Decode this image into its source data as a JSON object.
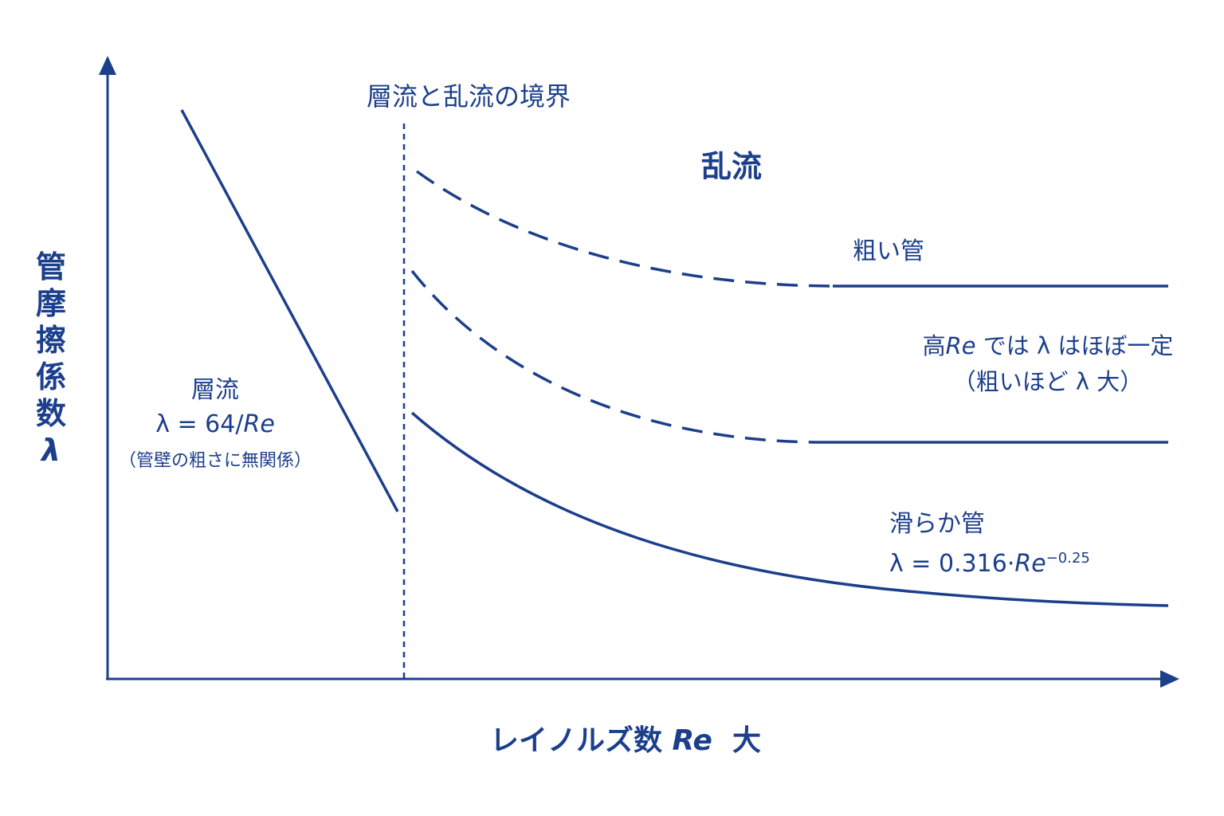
{
  "colors": {
    "ink": "#1c3f8c"
  },
  "y_axis_label_chars": [
    "管",
    "摩",
    "擦",
    "係",
    "数",
    "λ"
  ],
  "x_axis_label": {
    "prefix": "レイノルズ数 ",
    "re": "Re",
    "suffix": "  大"
  },
  "boundary_label": "層流と乱流の境界",
  "turbulent_label": "乱流",
  "laminar": {
    "title": "層流",
    "formula_prefix": "λ = 64/",
    "formula_re": "Re",
    "note": "（管壁の粗さに無関係）"
  },
  "rough_pipe_label": "粗い管",
  "high_re_note": {
    "line1_prefix": "高",
    "line1_re": "Re",
    "line1_suffix": " では λ はほぼ一定",
    "line2": "（粗いほど λ 大）"
  },
  "smooth_pipe": {
    "title": "滑らか管",
    "formula_prefix": "λ = 0.316·",
    "formula_re": "Re",
    "formula_exp": "−0.25"
  }
}
